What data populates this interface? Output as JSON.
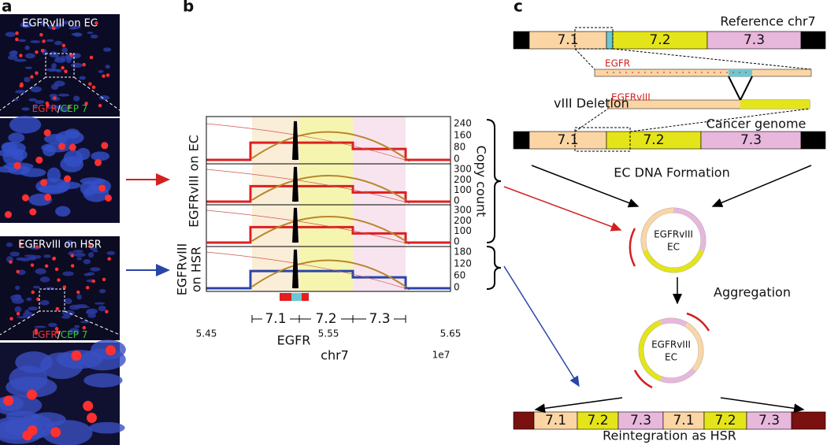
{
  "panel_a": {
    "label": "a",
    "top_title": "EGFRvIII on EC",
    "top_legend": {
      "egfr": "EGFR",
      "sep": "/",
      "cep": "CEP 7"
    },
    "bottom_title": "EGFRvIII on HSR",
    "bottom_legend": {
      "egfr": "EGFR",
      "sep": "/",
      "cep": "CEP 7"
    }
  },
  "panel_b": {
    "label": "b",
    "track_label_ec": "EGFRvIII on EC",
    "track_label_hsr": [
      "EGFRvIII",
      "on HSR"
    ],
    "track_ticks": [
      [
        "240",
        "160",
        "80",
        "0"
      ],
      [
        "300",
        "200",
        "100",
        "0"
      ],
      [
        "300",
        "200",
        "100",
        "0"
      ],
      [
        "180",
        "120",
        "60",
        "0"
      ]
    ],
    "y_label": "Copy count",
    "bands": [
      "7.1",
      "7.2",
      "7.3"
    ],
    "x_ticks": [
      "5.45",
      "5.55",
      "5.65"
    ],
    "x_offset": "1e7",
    "gene": "EGFR",
    "x_label": "chr7"
  },
  "panel_c": {
    "label": "c",
    "reference": "Reference chr7",
    "reference_bands": [
      "7.1",
      "7.2",
      "7.3"
    ],
    "egfr": "EGFR",
    "egfrviii": "EGFRvIII",
    "deletion": "vIII Deletion",
    "cancer": "Cancer genome",
    "cancer_bands": [
      "7.1",
      "7.2",
      "7.3"
    ],
    "formation": "EC DNA Formation",
    "ec1": [
      "EGFRvIII",
      "EC"
    ],
    "aggregation": "Aggregation",
    "ec2": [
      "EGFRvIII",
      "EC"
    ],
    "hsr_bands": [
      "7.1",
      "7.2",
      "7.3",
      "7.1",
      "7.2",
      "7.3"
    ],
    "reintegration": "Reintegration as HSR"
  }
}
